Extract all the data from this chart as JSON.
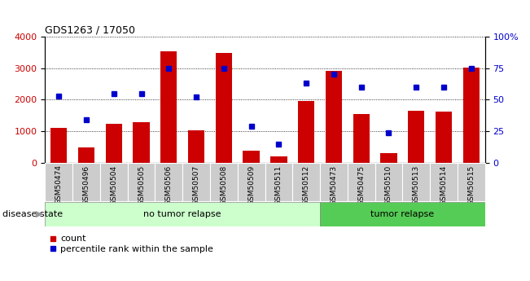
{
  "title": "GDS1263 / 17050",
  "samples": [
    "GSM50474",
    "GSM50496",
    "GSM50504",
    "GSM50505",
    "GSM50506",
    "GSM50507",
    "GSM50508",
    "GSM50509",
    "GSM50511",
    "GSM50512",
    "GSM50473",
    "GSM50475",
    "GSM50510",
    "GSM50513",
    "GSM50514",
    "GSM50515"
  ],
  "counts": [
    1120,
    490,
    1230,
    1290,
    3540,
    1040,
    3470,
    400,
    220,
    1960,
    2920,
    1560,
    320,
    1640,
    1620,
    3010
  ],
  "percentiles": [
    53,
    34,
    55,
    55,
    75,
    52,
    75,
    29,
    15,
    63,
    70,
    60,
    24,
    60,
    60,
    75
  ],
  "n_no_relapse": 10,
  "n_relapse": 6,
  "bar_color": "#cc0000",
  "dot_color": "#0000cc",
  "ylim_left": [
    0,
    4000
  ],
  "ylim_right": [
    0,
    100
  ],
  "yticks_left": [
    0,
    1000,
    2000,
    3000,
    4000
  ],
  "yticks_right": [
    0,
    25,
    50,
    75,
    100
  ],
  "no_relapse_color": "#ccffcc",
  "relapse_color": "#55cc55",
  "tick_bg_color": "#cccccc",
  "disease_label": "disease state",
  "no_relapse_label": "no tumor relapse",
  "relapse_label": "tumor relapse",
  "legend_count": "count",
  "legend_pct": "percentile rank within the sample"
}
